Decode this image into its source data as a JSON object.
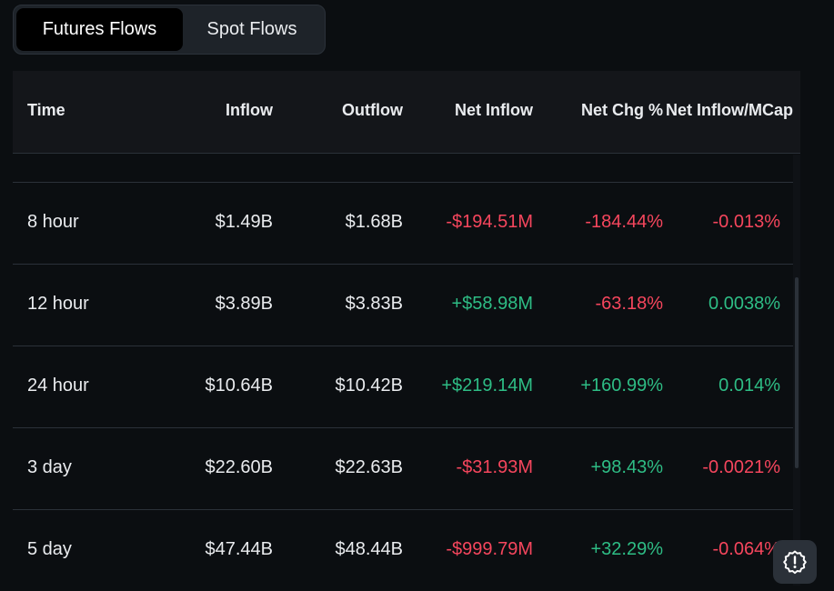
{
  "tabs": {
    "futures_label": "Futures Flows",
    "spot_label": "Spot Flows",
    "active": "Futures Flows"
  },
  "table": {
    "columns": [
      "Time",
      "Inflow",
      "Outflow",
      "Net Inflow",
      "Net Chg %",
      "Net Inflow/MCap"
    ],
    "rows": [
      {
        "time": "8 hour",
        "inflow": "$1.49B",
        "outflow": "$1.68B",
        "net_inflow": "-$194.51M",
        "net_chg": "-184.44%",
        "net_mcap": "-0.013%"
      },
      {
        "time": "12 hour",
        "inflow": "$3.89B",
        "outflow": "$3.83B",
        "net_inflow": "+$58.98M",
        "net_chg": "-63.18%",
        "net_mcap": "0.0038%"
      },
      {
        "time": "24 hour",
        "inflow": "$10.64B",
        "outflow": "$10.42B",
        "net_inflow": "+$219.14M",
        "net_chg": "+160.99%",
        "net_mcap": "0.014%"
      },
      {
        "time": "3 day",
        "inflow": "$22.60B",
        "outflow": "$22.63B",
        "net_inflow": "-$31.93M",
        "net_chg": "+98.43%",
        "net_mcap": "-0.0021%"
      },
      {
        "time": "5 day",
        "inflow": "$47.44B",
        "outflow": "$48.44B",
        "net_inflow": "-$999.79M",
        "net_chg": "+32.29%",
        "net_mcap": "-0.064%"
      }
    ]
  },
  "colors": {
    "positive": "#2ebd85",
    "negative": "#f6465d",
    "background": "#0b0e11"
  },
  "icons": {
    "help": "alert-circle-icon"
  }
}
